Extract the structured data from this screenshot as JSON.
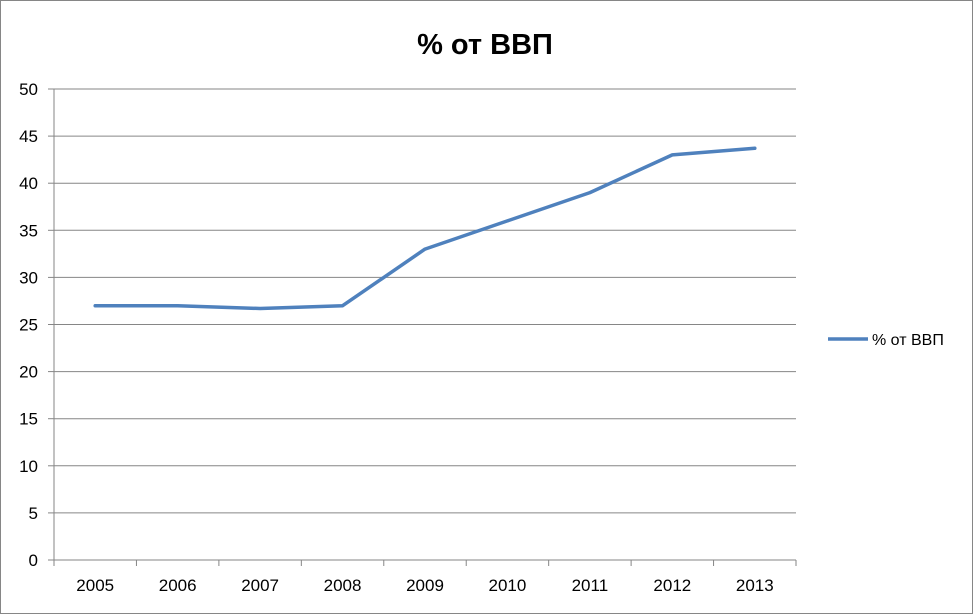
{
  "chart_data": {
    "type": "line",
    "title": "% от ВВП",
    "xlabel": "",
    "ylabel": "",
    "categories": [
      "2005",
      "2006",
      "2007",
      "2008",
      "2009",
      "2010",
      "2011",
      "2012",
      "2013"
    ],
    "series": [
      {
        "name": "% от ВВП",
        "values": [
          27,
          27,
          26.7,
          27,
          33,
          36,
          39,
          43,
          43.7
        ],
        "color": "#4F81BD"
      }
    ],
    "ylim": [
      0,
      50
    ],
    "yticks": [
      "0",
      "5",
      "10",
      "15",
      "20",
      "25",
      "30",
      "35",
      "40",
      "45",
      "50"
    ],
    "grid": true,
    "legend": "right"
  }
}
